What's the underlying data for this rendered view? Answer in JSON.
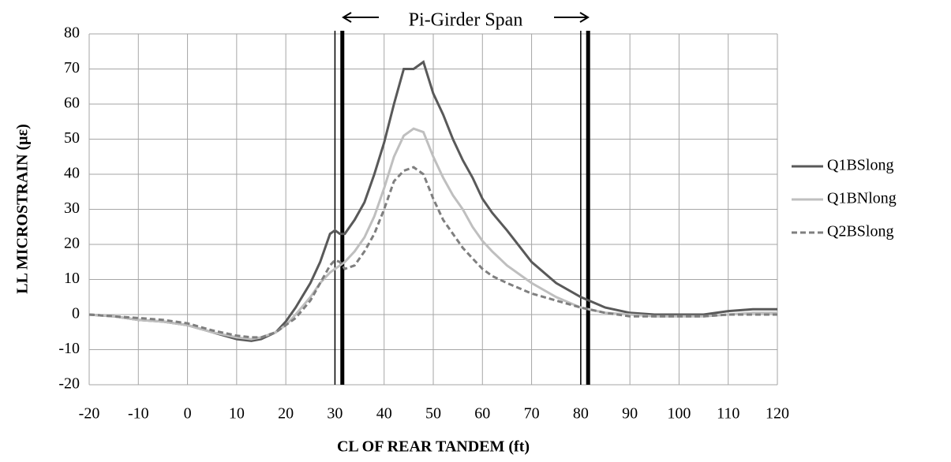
{
  "chart_data": {
    "type": "line",
    "annotation": "Pi-Girder Span",
    "xlabel": "CL OF REAR TANDEM (ft)",
    "ylabel": "LL MICROSTRAIN (με)",
    "x": [
      -20,
      -15,
      -10,
      -5,
      0,
      5,
      10,
      13,
      15,
      18,
      20,
      22,
      25,
      27,
      29,
      30,
      31,
      32,
      34,
      36,
      38,
      40,
      42,
      44,
      46,
      48,
      50,
      52,
      54,
      56,
      58,
      60,
      62,
      65,
      70,
      75,
      80,
      85,
      90,
      95,
      100,
      105,
      110,
      115,
      120
    ],
    "series": [
      {
        "name": "Q1BSlong",
        "color": "#595959",
        "dash": "solid",
        "values": [
          0,
          -0.5,
          -1.5,
          -2,
          -3,
          -5,
          -7,
          -7.5,
          -7,
          -5,
          -2,
          2,
          9,
          15,
          23,
          24,
          23,
          23,
          27,
          32,
          40,
          49,
          60,
          70,
          70,
          72,
          63,
          57,
          50,
          44,
          39,
          33,
          29,
          24,
          15,
          9,
          5,
          2,
          0.5,
          0,
          0,
          0,
          1,
          1.5,
          1.5
        ]
      },
      {
        "name": "Q1BNlong",
        "color": "#bfbfbf",
        "dash": "solid",
        "values": [
          0,
          -0.5,
          -1.5,
          -2,
          -3,
          -5,
          -6.5,
          -7,
          -6.5,
          -5,
          -3,
          0,
          5,
          9,
          12,
          13,
          14,
          15,
          18,
          22,
          28,
          36,
          45,
          51,
          53,
          52,
          45,
          39,
          34,
          30,
          25,
          21,
          18,
          14,
          9,
          5,
          2,
          0.5,
          0,
          -0.5,
          -0.5,
          -0.5,
          0,
          0.5,
          0.5
        ]
      },
      {
        "name": "Q2BSlong",
        "color": "#7f7f7f",
        "dash": "dashed",
        "values": [
          0,
          -0.5,
          -1,
          -1.5,
          -2.5,
          -4.5,
          -6,
          -6.5,
          -6.5,
          -5,
          -3,
          -1,
          4,
          9,
          14,
          15.5,
          15,
          13,
          14,
          18,
          23,
          30,
          38,
          41,
          42,
          40,
          33,
          27,
          23,
          19,
          16,
          13,
          11,
          9,
          6,
          4,
          2,
          0.5,
          -0.5,
          -0.5,
          -0.5,
          -0.5,
          0,
          0,
          0
        ]
      }
    ],
    "vertical_lines": [
      {
        "x": 30,
        "style": "thin"
      },
      {
        "x": 31.5,
        "style": "thick"
      },
      {
        "x": 80,
        "style": "thin"
      },
      {
        "x": 81.5,
        "style": "thick"
      }
    ],
    "xlim": [
      -20,
      120
    ],
    "xticks": [
      -20,
      -10,
      0,
      10,
      20,
      30,
      40,
      50,
      60,
      70,
      80,
      90,
      100,
      110,
      120
    ],
    "ylim": [
      -20,
      80
    ],
    "yticks": [
      -20,
      -10,
      0,
      10,
      20,
      30,
      40,
      50,
      60,
      70,
      80
    ],
    "grid": true,
    "legend": "right"
  }
}
